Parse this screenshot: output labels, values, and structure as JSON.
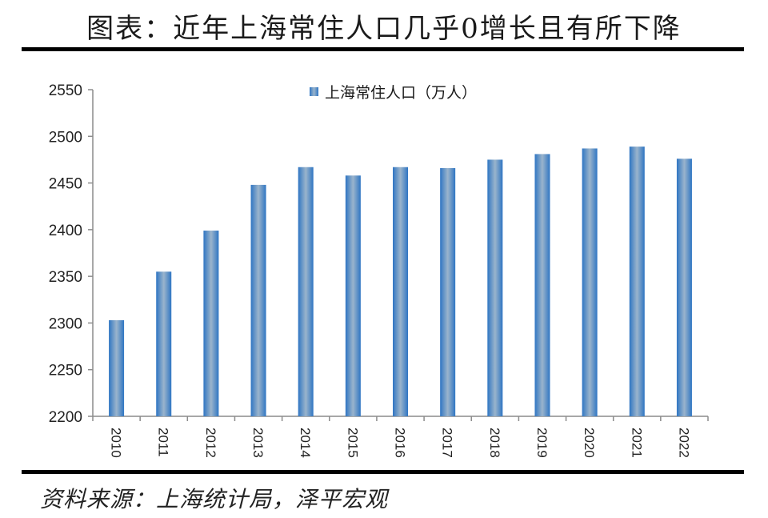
{
  "header": {
    "title": "图表：近年上海常住人口几乎0增长且有所下降"
  },
  "footer": {
    "source": "资料来源：上海统计局，泽平宏观"
  },
  "colors": {
    "bar_edge": "#2e75c3",
    "bar_center": "#9ab4cc",
    "axis": "#8c8c8c",
    "rule": "#000000"
  },
  "chart_data": {
    "type": "bar",
    "title": "图表：近年上海常住人口几乎0增长且有所下降",
    "xlabel": "",
    "ylabel": "",
    "categories": [
      "2010",
      "2011",
      "2012",
      "2013",
      "2014",
      "2015",
      "2016",
      "2017",
      "2018",
      "2019",
      "2020",
      "2021",
      "2022"
    ],
    "series": [
      {
        "name": "上海常住人口（万人）",
        "values": [
          2303,
          2355,
          2399,
          2448,
          2467,
          2458,
          2467,
          2466,
          2475,
          2481,
          2487,
          2489,
          2476
        ]
      }
    ],
    "ylim": [
      2200,
      2550
    ],
    "yticks": [
      2200,
      2250,
      2300,
      2350,
      2400,
      2450,
      2500,
      2550
    ],
    "grid": false,
    "legend_position": "top-center",
    "x_tick_rotation": 90
  }
}
